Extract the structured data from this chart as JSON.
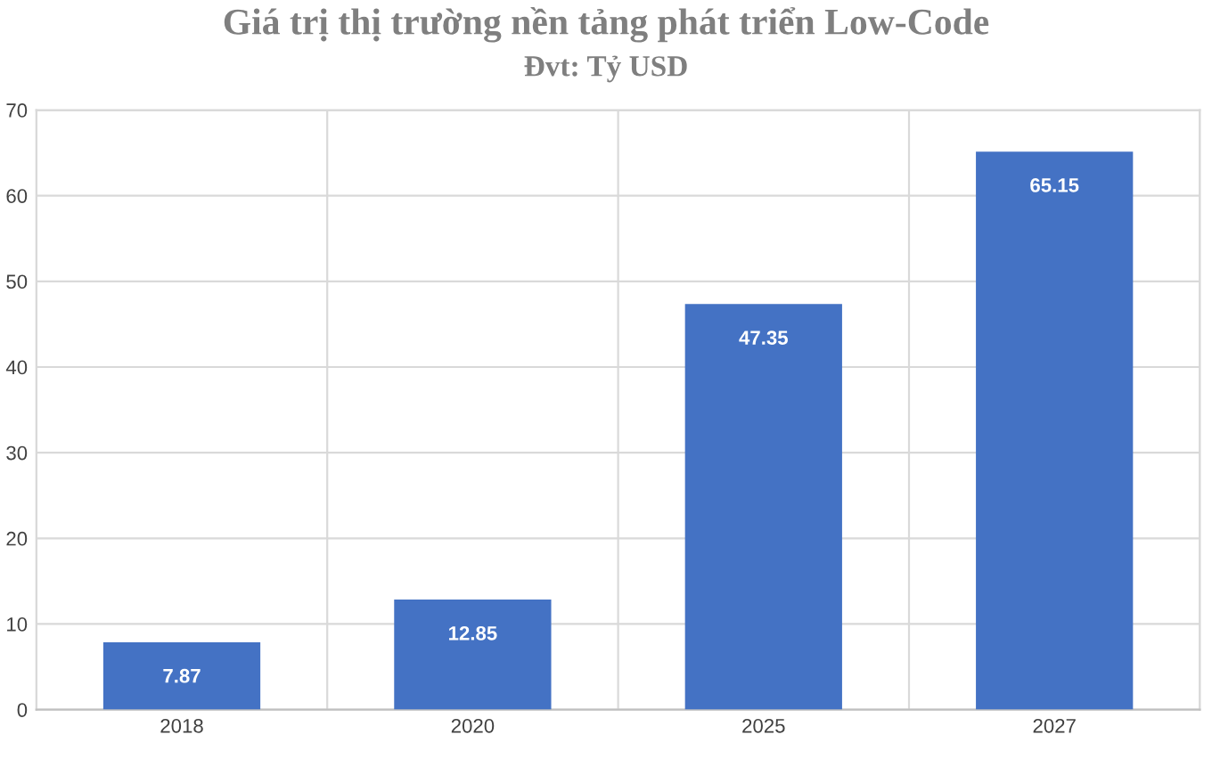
{
  "chart_data": {
    "type": "bar",
    "title": "Giá trị thị trường nền tảng phát triển Low-Code",
    "subtitle": "Đvt: Tỷ USD",
    "categories": [
      "2018",
      "2020",
      "2025",
      "2027"
    ],
    "values": [
      7.87,
      12.85,
      47.35,
      65.15
    ],
    "color": "#4472c4",
    "ylim": [
      0,
      70
    ],
    "yticks": [
      0,
      10,
      20,
      30,
      40,
      50,
      60,
      70
    ],
    "grid": true,
    "data_labels": true
  }
}
